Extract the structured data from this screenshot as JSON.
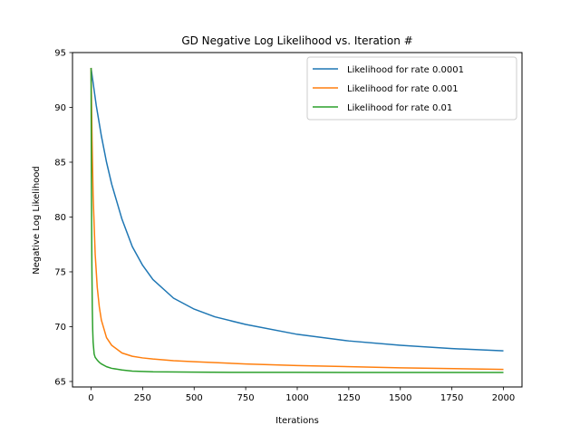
{
  "chart_data": {
    "type": "line",
    "title": "GD Negative Log Likelihood vs. Iteration #",
    "xlabel": "Iterations",
    "ylabel": "Negative Log Likelihood",
    "xlim": [
      -90,
      2090
    ],
    "ylim": [
      64.5,
      95
    ],
    "xticks": [
      0,
      250,
      500,
      750,
      1000,
      1250,
      1500,
      1750,
      2000
    ],
    "yticks": [
      65,
      70,
      75,
      80,
      85,
      90,
      95
    ],
    "grid": false,
    "legend_position": "top-right",
    "series": [
      {
        "name": "Likelihood for rate 0.0001",
        "color": "#1f77b4",
        "x": [
          0,
          25,
          50,
          75,
          100,
          150,
          200,
          250,
          300,
          400,
          500,
          600,
          750,
          1000,
          1250,
          1500,
          1750,
          2000
        ],
        "y": [
          93.6,
          90.2,
          87.4,
          85.0,
          83.0,
          79.8,
          77.3,
          75.6,
          74.3,
          72.6,
          71.6,
          70.9,
          70.2,
          69.3,
          68.7,
          68.3,
          68.0,
          67.8
        ]
      },
      {
        "name": "Likelihood for rate 0.001",
        "color": "#ff7f0e",
        "x": [
          0,
          5,
          10,
          20,
          30,
          40,
          50,
          75,
          100,
          150,
          200,
          250,
          300,
          400,
          500,
          750,
          1000,
          1500,
          2000
        ],
        "y": [
          93.6,
          87.0,
          82.0,
          76.6,
          73.6,
          71.8,
          70.6,
          69.0,
          68.3,
          67.6,
          67.3,
          67.15,
          67.05,
          66.9,
          66.8,
          66.6,
          66.45,
          66.25,
          66.1
        ]
      },
      {
        "name": "Likelihood for rate 0.01",
        "color": "#2ca02c",
        "x": [
          0,
          2,
          4,
          6,
          8,
          10,
          15,
          20,
          30,
          40,
          50,
          75,
          100,
          150,
          200,
          300,
          500,
          750,
          1000,
          1500,
          2000
        ],
        "y": [
          93.6,
          82.0,
          75.5,
          71.7,
          69.7,
          68.6,
          67.5,
          67.2,
          66.95,
          66.75,
          66.6,
          66.35,
          66.2,
          66.05,
          65.95,
          65.88,
          65.85,
          65.83,
          65.83,
          65.82,
          65.82
        ]
      }
    ]
  }
}
